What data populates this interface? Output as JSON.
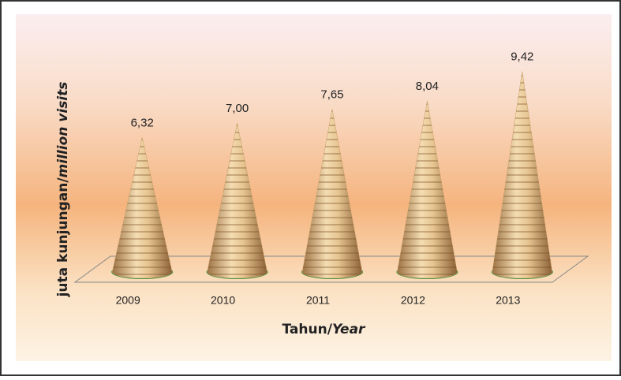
{
  "chart_data": {
    "type": "cone",
    "categories": [
      "2009",
      "2010",
      "2011",
      "2012",
      "2013"
    ],
    "values": [
      6.32,
      7.0,
      7.65,
      8.04,
      9.42
    ],
    "value_labels": [
      "6,32",
      "7,00",
      "7,65",
      "8,04",
      "9,42"
    ],
    "ylim": [
      0,
      11
    ],
    "ylabel": {
      "regular": "juta kunjungan/",
      "italic": "million visits"
    },
    "xlabel": {
      "regular": "Tahun/",
      "italic": "Year"
    },
    "color": "#c9a16a"
  }
}
